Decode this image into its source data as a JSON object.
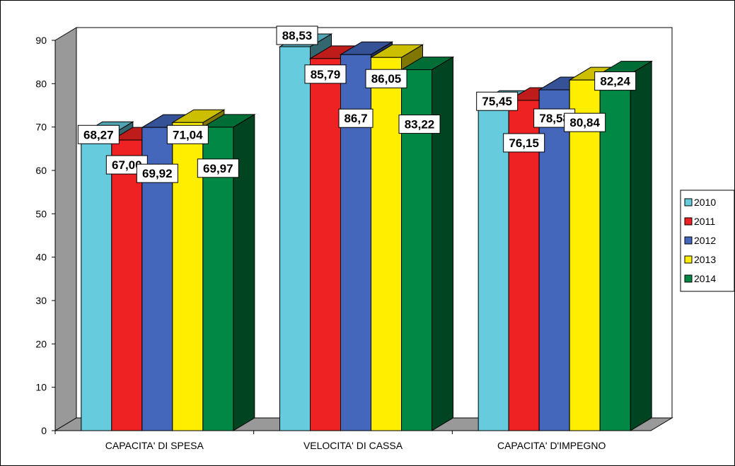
{
  "chart_data": {
    "type": "bar",
    "title": "",
    "xlabel": "",
    "ylabel": "",
    "ylim": [
      0,
      90
    ],
    "yticks": [
      "0",
      "10",
      "20",
      "30",
      "40",
      "50",
      "60",
      "70",
      "80",
      "90"
    ],
    "categories": [
      "CAPACITA' DI SPESA",
      "VELOCITA' DI CASSA",
      "CAPACITA' D'IMPEGNO"
    ],
    "series": [
      {
        "name": "2010",
        "color": "#66CCDD",
        "values": [
          68.27,
          88.53,
          75.45
        ],
        "labels": [
          "68,27",
          "88,53",
          "75,45"
        ]
      },
      {
        "name": "2011",
        "color": "#EE2222",
        "values": [
          67.0,
          85.79,
          76.15
        ],
        "labels": [
          "67,00",
          "85,79",
          "76,15"
        ]
      },
      {
        "name": "2012",
        "color": "#4466BB",
        "values": [
          69.92,
          86.7,
          78.58
        ],
        "labels": [
          "69,92",
          "86,7",
          "78,58"
        ]
      },
      {
        "name": "2013",
        "color": "#FFEE00",
        "values": [
          71.04,
          86.05,
          80.84
        ],
        "labels": [
          "71,04",
          "86,05",
          "80,84"
        ]
      },
      {
        "name": "2014",
        "color": "#008844",
        "values": [
          69.97,
          83.22,
          82.24
        ],
        "labels": [
          "69,97",
          "83,22",
          "82,24"
        ]
      }
    ],
    "grid": false,
    "legend": "right",
    "style": "3d-clustered-column"
  }
}
